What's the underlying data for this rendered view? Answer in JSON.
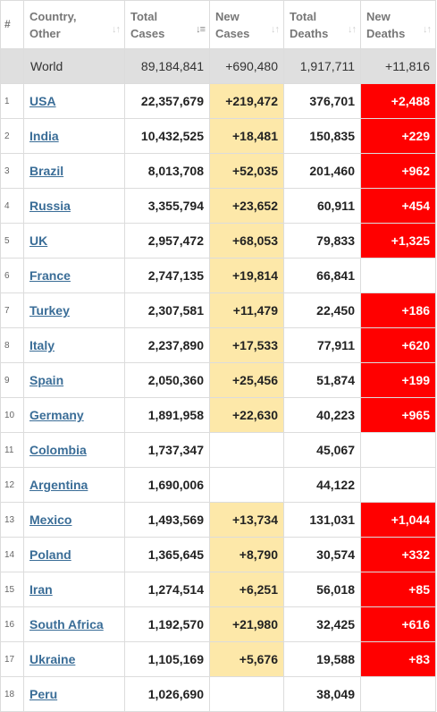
{
  "headers": {
    "num": "#",
    "country": [
      "Country,",
      "Other"
    ],
    "total_cases": [
      "Total",
      "Cases"
    ],
    "new_cases": [
      "New",
      "Cases"
    ],
    "total_deaths": [
      "Total",
      "Deaths"
    ],
    "new_deaths": [
      "New",
      "Deaths"
    ]
  },
  "sort_icons": {
    "inactive": "↓↑",
    "active": "↓≡"
  },
  "world": {
    "country": "World",
    "total_cases": "89,184,841",
    "new_cases": "+690,480",
    "total_deaths": "1,917,711",
    "new_deaths": "+11,816"
  },
  "rows": [
    {
      "num": "1",
      "country": "USA",
      "total_cases": "22,357,679",
      "new_cases": "+219,472",
      "total_deaths": "376,701",
      "new_deaths": "+2,488"
    },
    {
      "num": "2",
      "country": "India",
      "total_cases": "10,432,525",
      "new_cases": "+18,481",
      "total_deaths": "150,835",
      "new_deaths": "+229"
    },
    {
      "num": "3",
      "country": "Brazil",
      "total_cases": "8,013,708",
      "new_cases": "+52,035",
      "total_deaths": "201,460",
      "new_deaths": "+962"
    },
    {
      "num": "4",
      "country": "Russia",
      "total_cases": "3,355,794",
      "new_cases": "+23,652",
      "total_deaths": "60,911",
      "new_deaths": "+454"
    },
    {
      "num": "5",
      "country": "UK",
      "total_cases": "2,957,472",
      "new_cases": "+68,053",
      "total_deaths": "79,833",
      "new_deaths": "+1,325"
    },
    {
      "num": "6",
      "country": "France",
      "total_cases": "2,747,135",
      "new_cases": "+19,814",
      "total_deaths": "66,841",
      "new_deaths": ""
    },
    {
      "num": "7",
      "country": "Turkey",
      "total_cases": "2,307,581",
      "new_cases": "+11,479",
      "total_deaths": "22,450",
      "new_deaths": "+186"
    },
    {
      "num": "8",
      "country": "Italy",
      "total_cases": "2,237,890",
      "new_cases": "+17,533",
      "total_deaths": "77,911",
      "new_deaths": "+620"
    },
    {
      "num": "9",
      "country": "Spain",
      "total_cases": "2,050,360",
      "new_cases": "+25,456",
      "total_deaths": "51,874",
      "new_deaths": "+199"
    },
    {
      "num": "10",
      "country": "Germany",
      "total_cases": "1,891,958",
      "new_cases": "+22,630",
      "total_deaths": "40,223",
      "new_deaths": "+965"
    },
    {
      "num": "11",
      "country": "Colombia",
      "total_cases": "1,737,347",
      "new_cases": "",
      "total_deaths": "45,067",
      "new_deaths": ""
    },
    {
      "num": "12",
      "country": "Argentina",
      "total_cases": "1,690,006",
      "new_cases": "",
      "total_deaths": "44,122",
      "new_deaths": ""
    },
    {
      "num": "13",
      "country": "Mexico",
      "total_cases": "1,493,569",
      "new_cases": "+13,734",
      "total_deaths": "131,031",
      "new_deaths": "+1,044"
    },
    {
      "num": "14",
      "country": "Poland",
      "total_cases": "1,365,645",
      "new_cases": "+8,790",
      "total_deaths": "30,574",
      "new_deaths": "+332"
    },
    {
      "num": "15",
      "country": "Iran",
      "total_cases": "1,274,514",
      "new_cases": "+6,251",
      "total_deaths": "56,018",
      "new_deaths": "+85"
    },
    {
      "num": "16",
      "country": "South Africa",
      "total_cases": "1,192,570",
      "new_cases": "+21,980",
      "total_deaths": "32,425",
      "new_deaths": "+616"
    },
    {
      "num": "17",
      "country": "Ukraine",
      "total_cases": "1,105,169",
      "new_cases": "+5,676",
      "total_deaths": "19,588",
      "new_deaths": "+83"
    },
    {
      "num": "18",
      "country": "Peru",
      "total_cases": "1,026,690",
      "new_cases": "",
      "total_deaths": "38,049",
      "new_deaths": ""
    }
  ],
  "colors": {
    "new_cases_bg": "#fde8a9",
    "new_deaths_bg": "#ff0000",
    "world_row_bg": "#dfdfdf",
    "link": "#3a6d97"
  }
}
